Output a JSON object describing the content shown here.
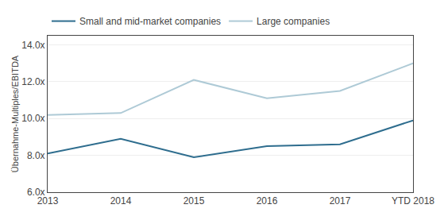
{
  "chart_data": {
    "type": "line",
    "categories": [
      "2013",
      "2014",
      "2015",
      "2016",
      "2017",
      "YTD 2018"
    ],
    "series": [
      {
        "name": "Small and mid-market companies",
        "color": "#2E6D8E",
        "values": [
          8.1,
          8.9,
          7.9,
          8.5,
          8.6,
          9.9
        ]
      },
      {
        "name": "Large companies",
        "color": "#AECAD6",
        "values": [
          10.2,
          10.3,
          12.1,
          11.1,
          11.5,
          13.0
        ]
      }
    ],
    "ylabel": "Übernahme-Multiples/EBITDA",
    "ylim": [
      6.0,
      14.5
    ],
    "yticks": [
      {
        "value": 6.0,
        "label": "6.0x"
      },
      {
        "value": 8.0,
        "label": "8.0x"
      },
      {
        "value": 10.0,
        "label": "10.0x"
      },
      {
        "value": 12.0,
        "label": "12.0x"
      },
      {
        "value": 14.0,
        "label": "14.0x"
      }
    ],
    "grid": true,
    "legend": "top"
  }
}
